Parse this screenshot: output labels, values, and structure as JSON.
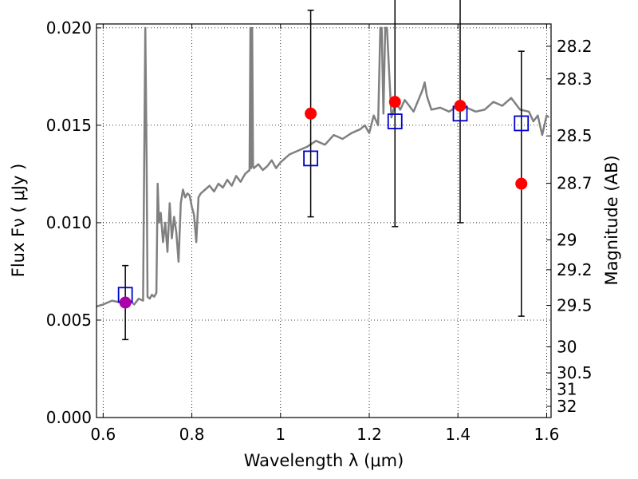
{
  "chart_data": {
    "type": "scatter",
    "xlabel": "Wavelength  λ (μm)",
    "ylabel": "Flux  Fν  ( μJy )",
    "y2label": "Magnitude (AB)",
    "xlim": [
      0.585,
      1.61
    ],
    "ylim": [
      0.0,
      0.0202
    ],
    "grid": true,
    "x_ticks": [
      {
        "value": 0.6,
        "label": "0.6"
      },
      {
        "value": 0.8,
        "label": "0.8"
      },
      {
        "value": 1.0,
        "label": "1"
      },
      {
        "value": 1.2,
        "label": "1.2"
      },
      {
        "value": 1.4,
        "label": "1.4"
      },
      {
        "value": 1.6,
        "label": "1.6"
      }
    ],
    "y_ticks": [
      {
        "value": 0.0,
        "label": "0.000"
      },
      {
        "value": 0.005,
        "label": "0.005"
      },
      {
        "value": 0.01,
        "label": "0.010"
      },
      {
        "value": 0.015,
        "label": "0.015"
      },
      {
        "value": 0.02,
        "label": "0.020"
      }
    ],
    "mag_ticks": [
      {
        "value": 28.2,
        "label": "28.2"
      },
      {
        "value": 28.3,
        "label": "28.3"
      },
      {
        "value": 28.5,
        "label": "28.5"
      },
      {
        "value": 28.7,
        "label": "28.7"
      },
      {
        "value": 29.0,
        "label": "29"
      },
      {
        "value": 29.2,
        "label": "29.2"
      },
      {
        "value": 29.5,
        "label": "29.5"
      },
      {
        "value": 30.0,
        "label": "30"
      },
      {
        "value": 30.5,
        "label": "30.5"
      },
      {
        "value": 31.0,
        "label": "31"
      },
      {
        "value": 32.0,
        "label": "32"
      }
    ],
    "series": [
      {
        "kind": "line",
        "color": "#808080",
        "x": [
          0.585,
          0.6,
          0.62,
          0.64,
          0.66,
          0.67,
          0.68,
          0.69,
          0.695,
          0.698,
          0.7,
          0.705,
          0.71,
          0.715,
          0.72,
          0.723,
          0.726,
          0.73,
          0.735,
          0.74,
          0.745,
          0.75,
          0.755,
          0.76,
          0.765,
          0.77,
          0.775,
          0.78,
          0.785,
          0.79,
          0.795,
          0.8,
          0.805,
          0.81,
          0.815,
          0.82,
          0.83,
          0.84,
          0.85,
          0.86,
          0.87,
          0.88,
          0.89,
          0.9,
          0.91,
          0.92,
          0.93,
          0.932,
          0.934,
          0.936,
          0.938,
          0.94,
          0.95,
          0.96,
          0.97,
          0.98,
          0.99,
          1.0,
          1.02,
          1.04,
          1.06,
          1.08,
          1.1,
          1.12,
          1.14,
          1.16,
          1.18,
          1.19,
          1.2,
          1.21,
          1.22,
          1.225,
          1.228,
          1.232,
          1.236,
          1.24,
          1.25,
          1.26,
          1.27,
          1.28,
          1.3,
          1.32,
          1.325,
          1.33,
          1.34,
          1.36,
          1.38,
          1.4,
          1.42,
          1.44,
          1.46,
          1.48,
          1.5,
          1.52,
          1.54,
          1.56,
          1.57,
          1.58,
          1.59,
          1.6,
          1.605
        ],
        "y": [
          0.0057,
          0.0058,
          0.006,
          0.0059,
          0.006,
          0.0058,
          0.0061,
          0.006,
          0.02,
          0.0135,
          0.0062,
          0.0061,
          0.0063,
          0.0062,
          0.0064,
          0.012,
          0.01,
          0.0105,
          0.009,
          0.01,
          0.0085,
          0.011,
          0.0092,
          0.0103,
          0.0095,
          0.008,
          0.011,
          0.0117,
          0.0113,
          0.0115,
          0.0114,
          0.0108,
          0.0104,
          0.009,
          0.0113,
          0.0115,
          0.0117,
          0.0119,
          0.0116,
          0.012,
          0.0118,
          0.0122,
          0.0119,
          0.0124,
          0.0121,
          0.0125,
          0.0127,
          0.02,
          0.0128,
          0.02,
          0.0129,
          0.0128,
          0.013,
          0.0127,
          0.0129,
          0.0132,
          0.0128,
          0.0131,
          0.0135,
          0.0137,
          0.0139,
          0.0142,
          0.014,
          0.0145,
          0.0143,
          0.0146,
          0.0148,
          0.015,
          0.0146,
          0.0155,
          0.015,
          0.02,
          0.02,
          0.0156,
          0.02,
          0.02,
          0.0154,
          0.0162,
          0.0158,
          0.0163,
          0.0157,
          0.0168,
          0.0172,
          0.0165,
          0.0158,
          0.0159,
          0.0157,
          0.016,
          0.0159,
          0.0157,
          0.0158,
          0.0162,
          0.016,
          0.0164,
          0.0158,
          0.0157,
          0.0152,
          0.0155,
          0.0145,
          0.0155,
          0.0154
        ]
      },
      {
        "kind": "model-squares",
        "color": "#0000cc",
        "x": [
          0.65,
          1.068,
          1.258,
          1.405,
          1.543
        ],
        "y": [
          0.0063,
          0.0133,
          0.0152,
          0.0156,
          0.0151
        ]
      },
      {
        "kind": "observed",
        "x": [
          0.65,
          1.068,
          1.258,
          1.405,
          1.543
        ],
        "y": [
          0.0059,
          0.0156,
          0.0162,
          0.016,
          0.012
        ],
        "yerr": [
          0.0019,
          0.0053,
          0.0064,
          0.006,
          0.0068
        ],
        "colors": [
          "#aa00aa",
          "#ff0000",
          "#ff0000",
          "#ff0000",
          "#ff0000"
        ]
      }
    ]
  }
}
